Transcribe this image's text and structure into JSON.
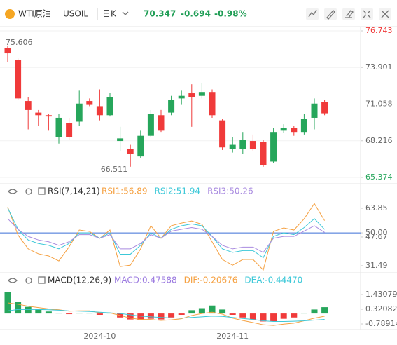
{
  "header": {
    "name": "WTI原油",
    "symbol": "USOIL",
    "period": "日K",
    "price": "70.347",
    "change": "-0.694",
    "change_pct": "-0.98%"
  },
  "chart_data": [
    {
      "type": "candlestick",
      "categories": [
        null,
        null,
        null,
        null,
        null,
        null,
        null,
        null,
        null,
        "2024-10",
        null,
        null,
        null,
        null,
        null,
        null,
        null,
        null,
        null,
        null,
        null,
        null,
        "2024-11",
        null,
        null,
        null,
        null,
        null,
        null,
        null,
        null,
        null
      ],
      "open": [
        75.4,
        74.5,
        71.3,
        70.4,
        70.2,
        68.5,
        69.6,
        69.7,
        71.3,
        70.9,
        70.2,
        68.2,
        67.6,
        67.0,
        68.6,
        70.2,
        70.4,
        71.5,
        71.9,
        71.7,
        72.0,
        69.8,
        67.6,
        67.55,
        68.2,
        68.1,
        66.6,
        69.0,
        69.2,
        68.9,
        70.0,
        71.2
      ],
      "high": [
        75.606,
        74.6,
        71.6,
        70.6,
        70.3,
        70.3,
        70.0,
        72.1,
        71.5,
        72.2,
        71.9,
        69.3,
        67.9,
        69.0,
        70.6,
        70.6,
        71.7,
        72.1,
        72.6,
        72.7,
        72.2,
        69.9,
        68.5,
        68.9,
        68.7,
        68.3,
        69.2,
        69.5,
        69.4,
        70.3,
        71.5,
        71.4
      ],
      "low": [
        74.3,
        71.4,
        69.1,
        69.4,
        69.0,
        68.0,
        68.3,
        69.4,
        70.9,
        69.8,
        70.1,
        67.4,
        66.2,
        66.9,
        68.5,
        68.9,
        70.2,
        71.0,
        69.3,
        71.5,
        70.0,
        67.5,
        67.3,
        67.2,
        67.4,
        66.2,
        66.511,
        68.8,
        68.6,
        68.7,
        69.1,
        70.2
      ],
      "close": [
        75.0,
        71.5,
        70.6,
        70.2,
        70.1,
        70.0,
        68.5,
        71.1,
        71.0,
        70.2,
        71.6,
        68.4,
        67.2,
        68.6,
        70.3,
        69.0,
        71.4,
        71.7,
        71.6,
        72.0,
        70.2,
        67.7,
        67.9,
        68.3,
        67.6,
        66.3,
        68.9,
        69.2,
        68.9,
        69.9,
        71.1,
        70.347
      ],
      "colors": {
        "up": "#26a65b",
        "down": "#f03a3a"
      },
      "annotations": [
        "75.606",
        "66.511"
      ],
      "ylim": [
        65.374,
        76.743
      ],
      "yticks": [
        76.743,
        73.901,
        71.058,
        68.216,
        65.374
      ]
    },
    {
      "type": "line",
      "title": "RSI(7,14,21)",
      "series": [
        {
          "name": "RSI1:56.89",
          "color": "#f5a142",
          "values": [
            64.6,
            48.8,
            41.0,
            38.2,
            37.0,
            34.2,
            42.1,
            51.6,
            50.8,
            46.9,
            51.6,
            31.0,
            31.8,
            41.0,
            54.0,
            47.0,
            54.0,
            55.5,
            56.7,
            54.8,
            44.9,
            35.0,
            31.8,
            35.0,
            35.0,
            29.1,
            50.8,
            52.8,
            51.6,
            57.9,
            66.5,
            56.89
          ]
        },
        {
          "name": "RSI2:51.94",
          "color": "#3cc8d8",
          "values": [
            64.0,
            52.0,
            46.0,
            44.0,
            43.0,
            41.0,
            44.0,
            50.0,
            50.0,
            47.0,
            50.0,
            38.0,
            38.0,
            43.0,
            50.0,
            47.0,
            52.0,
            54.0,
            55.0,
            54.0,
            48.0,
            41.0,
            39.0,
            40.0,
            40.0,
            36.0,
            48.0,
            50.0,
            49.0,
            53.0,
            58.0,
            51.94
          ]
        },
        {
          "name": "RSI3:50.26",
          "color": "#a98be0",
          "values": [
            58.0,
            52.0,
            48.0,
            46.0,
            45.0,
            43.0,
            45.0,
            49.0,
            49.0,
            47.0,
            49.0,
            41.0,
            41.0,
            44.0,
            49.0,
            47.0,
            51.0,
            52.0,
            53.0,
            52.0,
            48.0,
            43.0,
            41.0,
            42.0,
            42.0,
            39.0,
            47.0,
            48.0,
            48.0,
            51.0,
            54.0,
            50.26
          ]
        }
      ],
      "hline": {
        "value": 50,
        "color": "#3b6fd8"
      },
      "ylim": [
        27.9,
        68.6
      ],
      "yticks": [
        63.85,
        {
          "value": 50,
          "label": "50.00"
        },
        47.67,
        31.49
      ]
    },
    {
      "type": "bar",
      "title": "MACD(12,26,9)",
      "series": [
        {
          "name": "MACD:0.47588",
          "type": "bar",
          "color": "#9c7be0",
          "values": [
            1.6,
            0.9,
            0.5,
            0.3,
            0.15,
            0.05,
            -0.05,
            0.02,
            0.05,
            -0.1,
            0.02,
            -0.3,
            -0.45,
            -0.5,
            -0.4,
            -0.45,
            -0.3,
            -0.1,
            0.25,
            0.4,
            0.6,
            0.3,
            -0.1,
            -0.3,
            -0.45,
            -0.6,
            -0.6,
            -0.4,
            -0.3,
            0.05,
            0.3,
            0.47588
          ]
        },
        {
          "name": "DIF:-0.20676",
          "type": "line",
          "color": "#f5a142",
          "values": [
            0.8,
            0.7,
            0.55,
            0.45,
            0.35,
            0.28,
            0.18,
            0.2,
            0.2,
            0.05,
            0.05,
            -0.15,
            -0.35,
            -0.45,
            -0.45,
            -0.52,
            -0.48,
            -0.4,
            -0.15,
            0.0,
            0.1,
            -0.05,
            -0.35,
            -0.53,
            -0.68,
            -0.85,
            -0.9,
            -0.8,
            -0.73,
            -0.55,
            -0.35,
            -0.20676
          ]
        },
        {
          "name": "DEA:-0.44470",
          "type": "line",
          "color": "#3cc8d8",
          "values": [
            0.2,
            0.3,
            0.3,
            0.3,
            0.28,
            0.25,
            0.2,
            0.18,
            0.15,
            0.1,
            0.05,
            0.0,
            -0.1,
            -0.2,
            -0.25,
            -0.3,
            -0.33,
            -0.35,
            -0.3,
            -0.25,
            -0.2,
            -0.22,
            -0.3,
            -0.38,
            -0.45,
            -0.55,
            -0.6,
            -0.6,
            -0.58,
            -0.55,
            -0.5,
            -0.4447
          ]
        }
      ],
      "colors": {
        "up": "#26a65b",
        "down": "#f03a3a"
      },
      "ylim": [
        -1.21,
        1.96
      ],
      "yticks": [
        1.43079,
        0.32082,
        -0.78914
      ]
    }
  ]
}
